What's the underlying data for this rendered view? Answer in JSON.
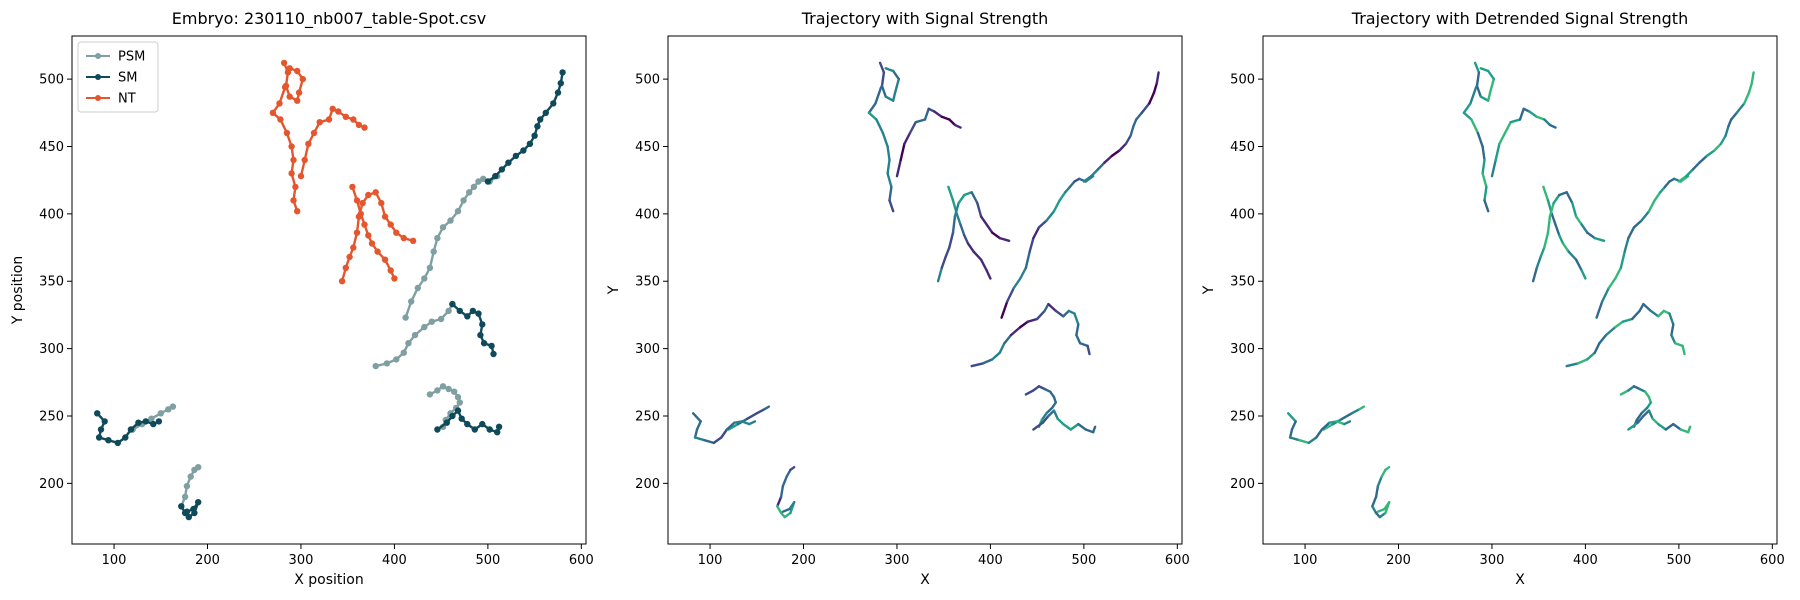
{
  "chart_data": [
    {
      "type": "line",
      "title": "Embryo: 230110_nb007_table-Spot.csv",
      "xlabel": "X position",
      "ylabel": "Y position",
      "xlim": [
        55,
        605
      ],
      "ylim": [
        155,
        532
      ],
      "xticks": [
        100,
        200,
        300,
        400,
        500,
        600
      ],
      "yticks": [
        200,
        250,
        300,
        350,
        400,
        450,
        500
      ],
      "grid": false,
      "legend": "top-left",
      "colors": {
        "PSM": "#7f9fa3",
        "SM": "#0f4a5a",
        "NT": "#e4572e"
      },
      "series": [
        {
          "name": "PSM",
          "tracks": [
            [
              [
                412,
                323
              ],
              [
                418,
                335
              ],
              [
                425,
                345
              ],
              [
                432,
                352
              ],
              [
                438,
                360
              ],
              [
                442,
                372
              ],
              [
                446,
                382
              ],
              [
                452,
                390
              ],
              [
                460,
                395
              ],
              [
                468,
                402
              ],
              [
                474,
                410
              ],
              [
                480,
                416
              ],
              [
                485,
                420
              ],
              [
                490,
                424
              ],
              [
                495,
                426
              ],
              [
                502,
                424
              ],
              [
                510,
                428
              ]
            ],
            [
              [
                380,
                287
              ],
              [
                392,
                289
              ],
              [
                402,
                292
              ],
              [
                410,
                297
              ],
              [
                415,
                304
              ],
              [
                422,
                310
              ],
              [
                432,
                316
              ],
              [
                440,
                320
              ],
              [
                450,
                322
              ],
              [
                458,
                328
              ],
              [
                462,
                333
              ]
            ],
            [
              [
                438,
                266
              ],
              [
                446,
                269
              ],
              [
                452,
                272
              ],
              [
                458,
                270
              ],
              [
                464,
                268
              ],
              [
                468,
                264
              ],
              [
                470,
                260
              ],
              [
                466,
                256
              ],
              [
                460,
                252
              ],
              [
                455,
                247
              ],
              [
                452,
                242
              ]
            ],
            [
              [
                120,
                240
              ],
              [
                130,
                244
              ],
              [
                140,
                248
              ],
              [
                150,
                252
              ],
              [
                158,
                255
              ],
              [
                163,
                257
              ]
            ],
            [
              [
                172,
                183
              ],
              [
                176,
                190
              ],
              [
                178,
                198
              ],
              [
                182,
                205
              ],
              [
                186,
                210
              ],
              [
                190,
                212
              ]
            ]
          ]
        },
        {
          "name": "SM",
          "tracks": [
            [
              [
                500,
                424
              ],
              [
                508,
                428
              ],
              [
                515,
                433
              ],
              [
                522,
                438
              ],
              [
                530,
                443
              ],
              [
                538,
                447
              ],
              [
                545,
                452
              ],
              [
                550,
                458
              ],
              [
                553,
                465
              ],
              [
                556,
                470
              ],
              [
                562,
                475
              ],
              [
                570,
                482
              ],
              [
                575,
                490
              ],
              [
                578,
                497
              ],
              [
                580,
                505
              ]
            ],
            [
              [
                462,
                333
              ],
              [
                470,
                328
              ],
              [
                478,
                324
              ],
              [
                484,
                328
              ],
              [
                490,
                326
              ],
              [
                494,
                318
              ],
              [
                492,
                310
              ],
              [
                496,
                304
              ],
              [
                504,
                302
              ],
              [
                506,
                296
              ]
            ],
            [
              [
                446,
                240
              ],
              [
                456,
                245
              ],
              [
                462,
                250
              ],
              [
                468,
                254
              ],
              [
                472,
                248
              ],
              [
                478,
                244
              ],
              [
                486,
                240
              ],
              [
                494,
                244
              ],
              [
                502,
                240
              ],
              [
                510,
                238
              ],
              [
                512,
                242
              ]
            ],
            [
              [
                82,
                252
              ],
              [
                90,
                246
              ],
              [
                86,
                240
              ],
              [
                84,
                234
              ],
              [
                94,
                232
              ],
              [
                104,
                230
              ],
              [
                112,
                234
              ],
              [
                118,
                240
              ],
              [
                126,
                245
              ],
              [
                134,
                246
              ],
              [
                142,
                244
              ],
              [
                148,
                246
              ]
            ],
            [
              [
                172,
                183
              ],
              [
                176,
                178
              ],
              [
                180,
                175
              ],
              [
                186,
                178
              ],
              [
                190,
                186
              ],
              [
                185,
                181
              ],
              [
                178,
                179
              ]
            ]
          ]
        },
        {
          "name": "NT",
          "tracks": [
            [
              [
                282,
                512
              ],
              [
                286,
                505
              ],
              [
                284,
                495
              ],
              [
                288,
                487
              ],
              [
                296,
                484
              ],
              [
                298,
                490
              ],
              [
                302,
                500
              ],
              [
                296,
                506
              ],
              [
                288,
                508
              ]
            ],
            [
              [
                283,
                494
              ],
              [
                277,
                482
              ],
              [
                270,
                475
              ],
              [
                278,
                470
              ],
              [
                285,
                460
              ],
              [
                290,
                450
              ],
              [
                292,
                440
              ],
              [
                290,
                430
              ],
              [
                294,
                420
              ],
              [
                292,
                410
              ],
              [
                296,
                402
              ]
            ],
            [
              [
                300,
                428
              ],
              [
                304,
                440
              ],
              [
                308,
                452
              ],
              [
                314,
                460
              ],
              [
                320,
                468
              ],
              [
                330,
                470
              ],
              [
                334,
                478
              ],
              [
                340,
                476
              ],
              [
                348,
                472
              ],
              [
                356,
                470
              ],
              [
                362,
                466
              ],
              [
                368,
                464
              ]
            ],
            [
              [
                355,
                420
              ],
              [
                360,
                410
              ],
              [
                364,
                400
              ],
              [
                368,
                392
              ],
              [
                372,
                384
              ],
              [
                376,
                378
              ],
              [
                382,
                372
              ],
              [
                390,
                366
              ],
              [
                396,
                358
              ],
              [
                400,
                352
              ]
            ],
            [
              [
                344,
                350
              ],
              [
                348,
                360
              ],
              [
                352,
                368
              ],
              [
                356,
                375
              ],
              [
                360,
                386
              ],
              [
                362,
                398
              ],
              [
                366,
                408
              ],
              [
                372,
                414
              ],
              [
                380,
                416
              ],
              [
                386,
                408
              ],
              [
                390,
                398
              ],
              [
                396,
                392
              ],
              [
                402,
                386
              ],
              [
                410,
                382
              ],
              [
                420,
                380
              ]
            ]
          ]
        }
      ]
    },
    {
      "type": "line",
      "title": "Trajectory with Signal Strength",
      "xlabel": "X",
      "ylabel": "Y",
      "xlim": [
        55,
        605
      ],
      "ylim": [
        155,
        532
      ],
      "xticks": [
        100,
        200,
        300,
        400,
        500,
        600
      ],
      "yticks": [
        200,
        250,
        300,
        350,
        400,
        450,
        500
      ],
      "grid": false,
      "colormap": "viridis"
    },
    {
      "type": "line",
      "title": "Trajectory with Detrended Signal Strength",
      "xlabel": "X",
      "ylabel": "Y",
      "xlim": [
        55,
        605
      ],
      "ylim": [
        155,
        532
      ],
      "xticks": [
        100,
        200,
        300,
        400,
        500,
        600
      ],
      "yticks": [
        200,
        250,
        300,
        350,
        400,
        450,
        500
      ],
      "grid": false,
      "colormap": "viridis"
    }
  ]
}
